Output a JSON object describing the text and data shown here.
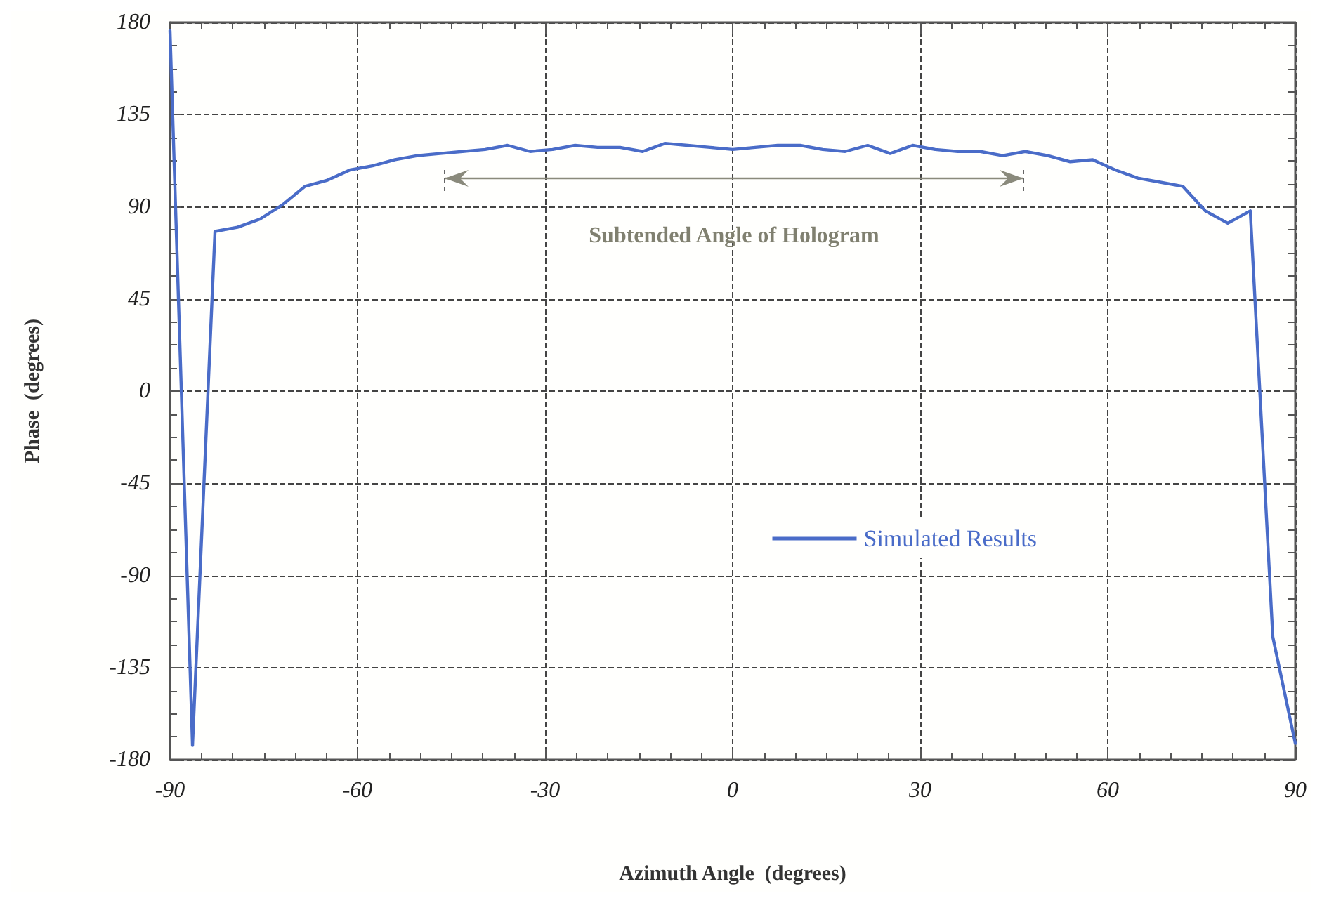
{
  "chart_data": {
    "type": "line",
    "xlabel": "Azimuth Angle  (degrees)",
    "ylabel": "Phase  (degrees)",
    "x": [
      -90,
      -86.4,
      -82.8,
      -79.2,
      -75.6,
      -72,
      -68.4,
      -64.8,
      -61.2,
      -57.6,
      -54,
      -50.4,
      -46.8,
      -43.2,
      -39.6,
      -36,
      -32.4,
      -28.8,
      -25.2,
      -21.6,
      -18,
      -14.4,
      -10.8,
      -7.2,
      -3.6,
      0,
      3.6,
      7.2,
      10.8,
      14.4,
      18,
      21.6,
      25.2,
      28.8,
      32.4,
      36,
      39.6,
      43.2,
      46.8,
      50.4,
      54,
      57.6,
      61.2,
      64.8,
      68.4,
      72,
      75.6,
      79.2,
      82.8,
      86.4,
      90
    ],
    "series": [
      {
        "name": "Simulated Results",
        "color": "#4a6cc8",
        "values": [
          176,
          -173,
          78,
          80,
          84,
          91,
          100,
          103,
          108,
          110,
          113,
          115,
          116,
          117,
          118,
          120,
          117,
          118,
          120,
          119,
          119,
          117,
          121,
          120,
          119,
          118,
          119,
          120,
          120,
          118,
          117,
          120,
          116,
          120,
          118,
          117,
          117,
          115,
          117,
          115,
          112,
          113,
          108,
          104,
          102,
          100,
          88,
          82,
          88,
          -120,
          -172
        ]
      }
    ],
    "xlim": [
      -90,
      90
    ],
    "xticks": [
      -90,
      -60,
      -30,
      0,
      30,
      60,
      90
    ],
    "ylim": [
      -180,
      180
    ],
    "yticks": [
      -180,
      -135,
      -90,
      -45,
      0,
      45,
      90,
      135,
      180
    ],
    "grid": true,
    "legend": "right",
    "marker": "none",
    "line_style": "solid",
    "annotations": [
      "Subtended Angle of Hologram"
    ]
  }
}
